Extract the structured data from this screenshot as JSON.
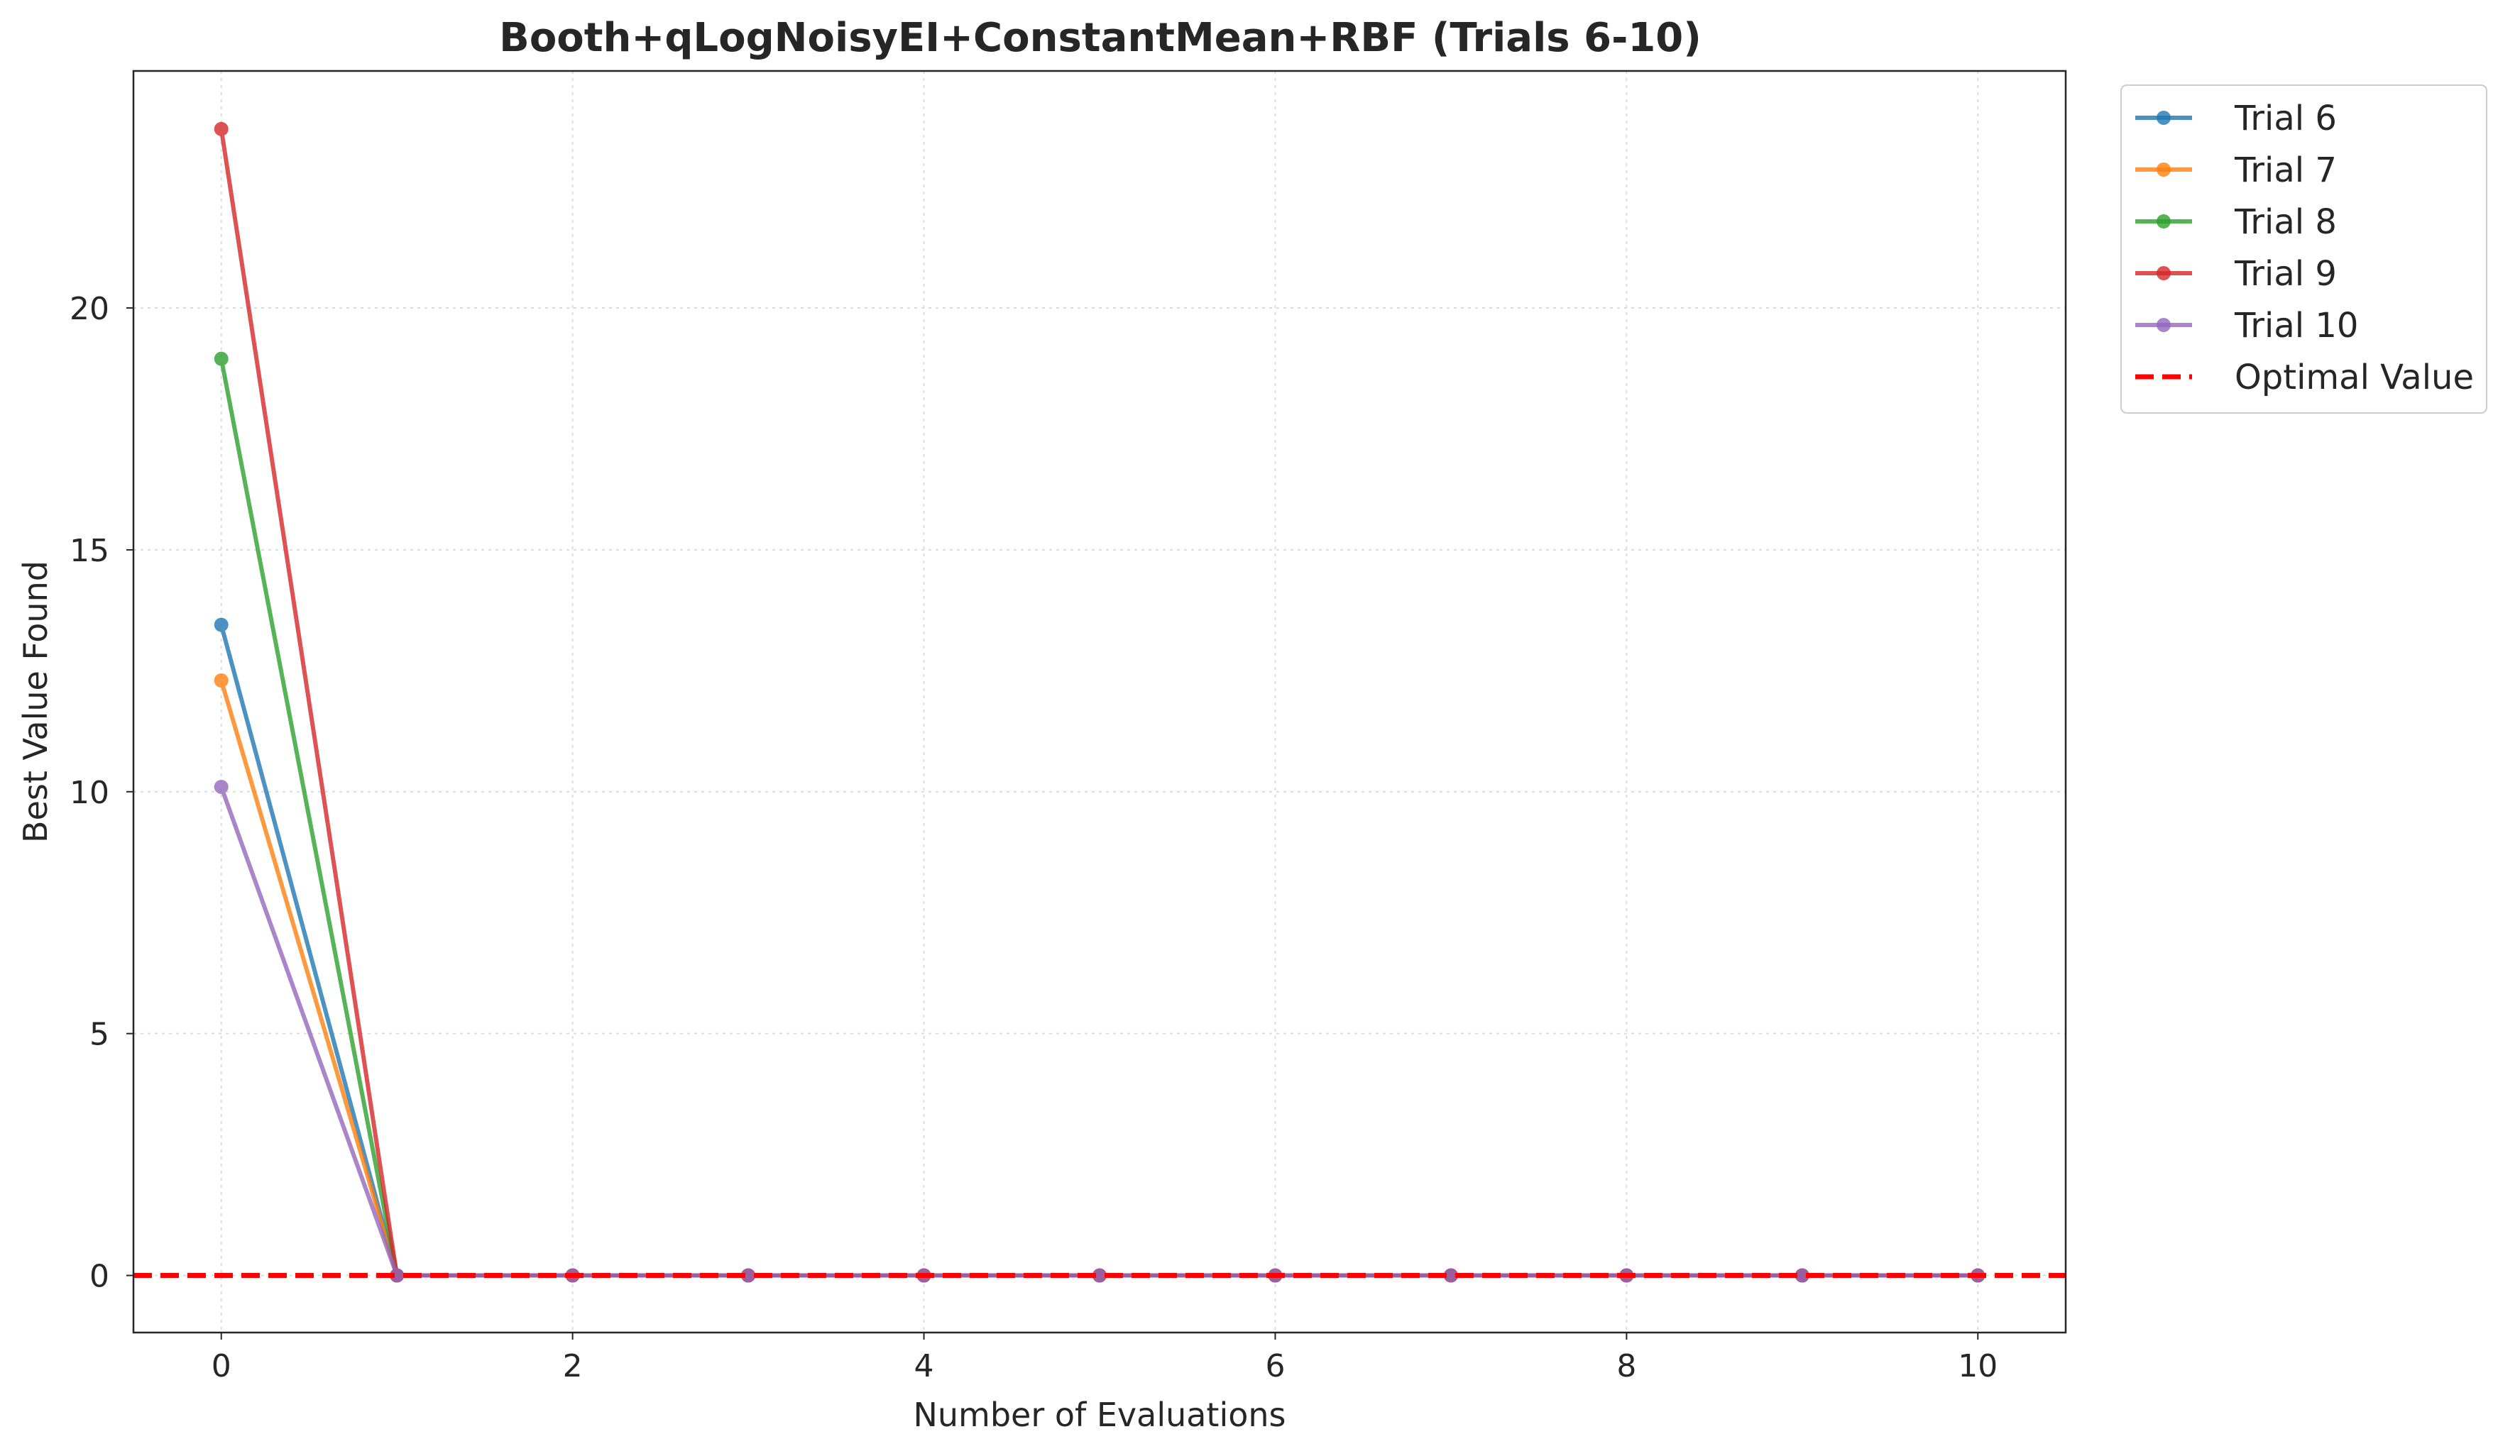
{
  "chart_data": {
    "type": "line",
    "title": "Booth+qLogNoisyEI+ConstantMean+RBF (Trials 6-10)",
    "xlabel": "Number of Evaluations",
    "ylabel": "Best Value Found",
    "xlim": [
      -0.5,
      10.5
    ],
    "ylim": [
      -1.18,
      24.9
    ],
    "x_ticks": [
      0,
      2,
      4,
      6,
      8,
      10
    ],
    "y_ticks": [
      0,
      5,
      10,
      15,
      20
    ],
    "x_tick_labels": [
      "0",
      "2",
      "4",
      "6",
      "8",
      "10"
    ],
    "y_tick_labels": [
      "0",
      "5",
      "10",
      "15",
      "20"
    ],
    "grid": true,
    "legend_position": "outside-top-right",
    "x": [
      0,
      1,
      2,
      3,
      4,
      5,
      6,
      7,
      8,
      9,
      10
    ],
    "series": [
      {
        "name": "Trial 6",
        "color": "#1f77b4",
        "values": [
          13.45,
          0,
          0,
          0,
          0,
          0,
          0,
          0,
          0,
          0,
          0
        ]
      },
      {
        "name": "Trial 7",
        "color": "#ff7f0e",
        "values": [
          12.3,
          0,
          0,
          0,
          0,
          0,
          0,
          0,
          0,
          0,
          0
        ]
      },
      {
        "name": "Trial 8",
        "color": "#2ca02c",
        "values": [
          18.95,
          0,
          0,
          0,
          0,
          0,
          0,
          0,
          0,
          0,
          0
        ]
      },
      {
        "name": "Trial 9",
        "color": "#d62728",
        "values": [
          23.7,
          0,
          0,
          0,
          0,
          0,
          0,
          0,
          0,
          0,
          0
        ]
      },
      {
        "name": "Trial 10",
        "color": "#9467bd",
        "values": [
          10.1,
          0,
          0,
          0,
          0,
          0,
          0,
          0,
          0,
          0,
          0
        ]
      }
    ],
    "reference_line": {
      "name": "Optimal Value",
      "y": 0,
      "color": "#ff0000",
      "style": "dashed"
    }
  }
}
